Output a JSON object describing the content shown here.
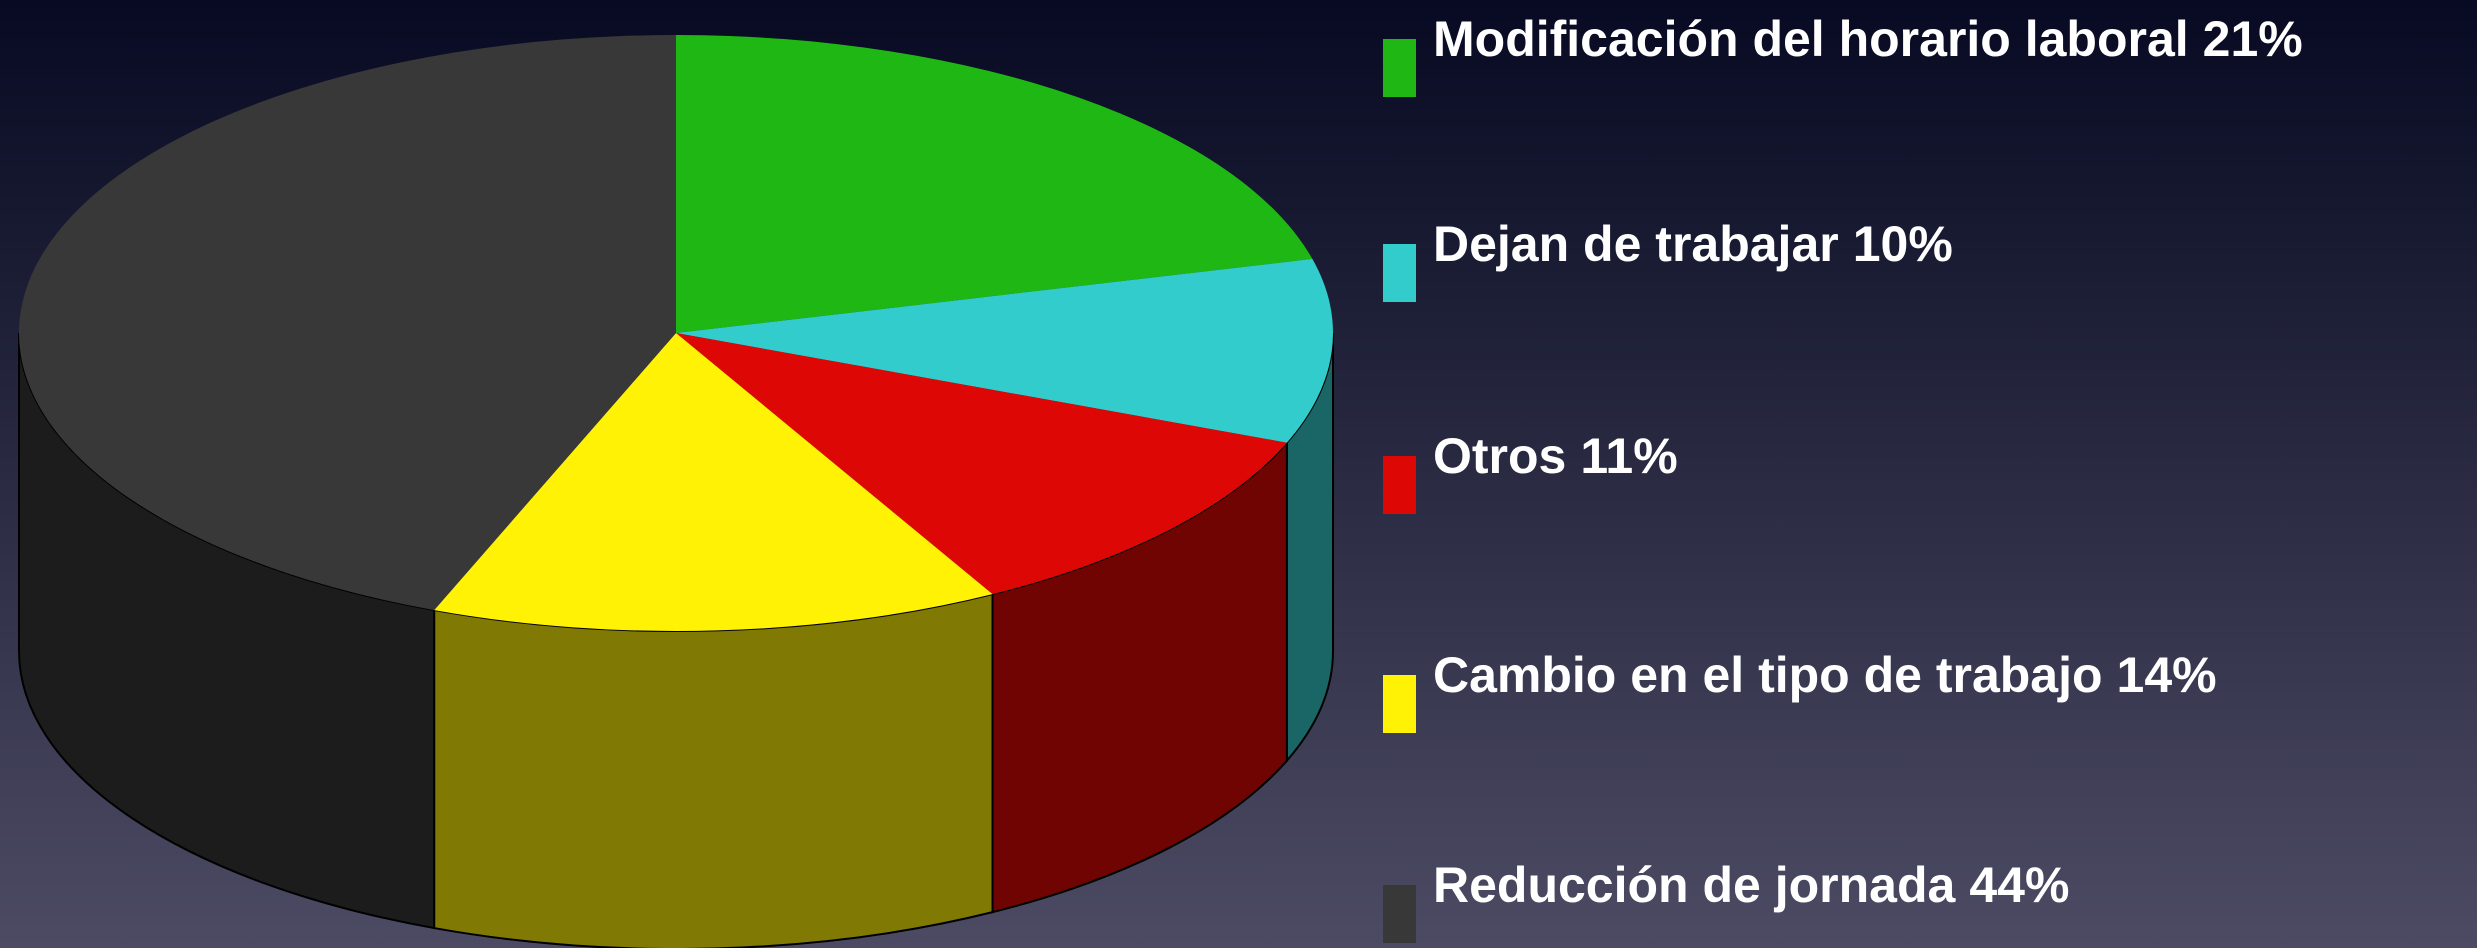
{
  "chart_data": {
    "type": "pie3d",
    "categories": [
      "Modificación del horario laboral",
      "Dejan de trabajar",
      "Otros",
      "Cambio en el tipo de trabajo",
      "Reducción de jornada"
    ],
    "values": [
      21,
      10,
      11,
      14,
      44
    ],
    "value_labels": [
      "21%",
      "10%",
      "11%",
      "14%",
      "44%"
    ],
    "colors": [
      "#1fb714",
      "#33cccc",
      "#dd0806",
      "#fff205",
      "#383838"
    ]
  }
}
